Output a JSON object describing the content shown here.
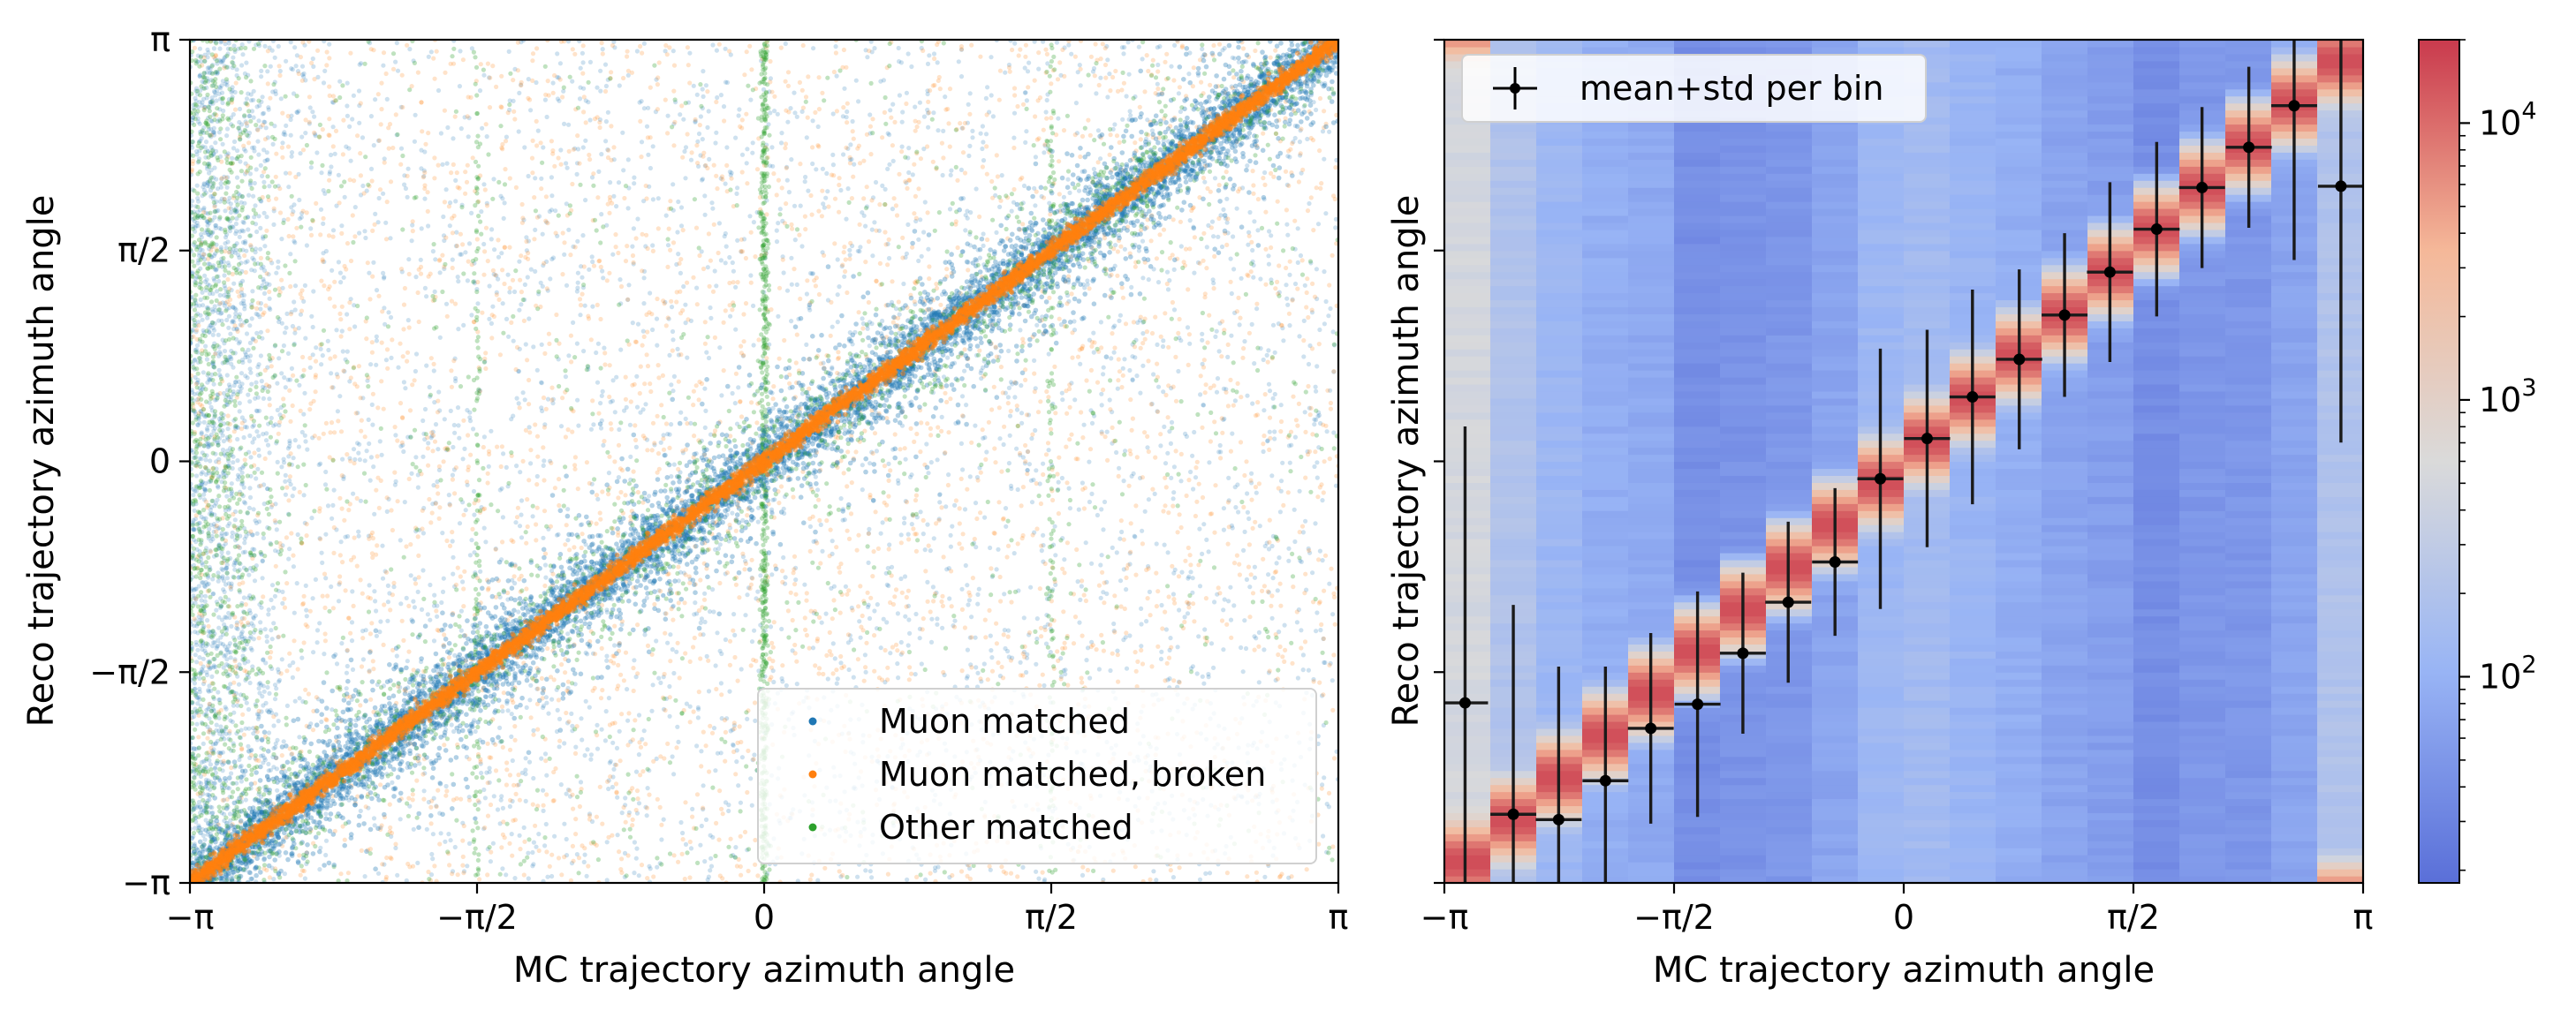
{
  "chart_data": [
    {
      "type": "scatter",
      "xlabel": "MC trajectory azimuth angle",
      "ylabel": "Reco trajectory azimuth angle",
      "xlim": [
        -3.14159,
        3.14159
      ],
      "ylim": [
        -3.14159,
        3.14159
      ],
      "xticks": [
        {
          "value": -3.14159,
          "label": "−π"
        },
        {
          "value": -1.5708,
          "label": "−π/2"
        },
        {
          "value": 0,
          "label": "0"
        },
        {
          "value": 1.5708,
          "label": "π/2"
        },
        {
          "value": 3.14159,
          "label": "π"
        }
      ],
      "yticks": [
        {
          "value": -3.14159,
          "label": "−π"
        },
        {
          "value": -1.5708,
          "label": "−π/2"
        },
        {
          "value": 0,
          "label": "0"
        },
        {
          "value": 1.5708,
          "label": "π/2"
        },
        {
          "value": 3.14159,
          "label": "π"
        }
      ],
      "grid": false,
      "legend_position": "lower-right",
      "series": [
        {
          "name": "Muon matched",
          "color": "#1f77b4",
          "distribution": "diagonal y = x with spread ~0.12 rad plus sparse uniform background; background denser near x = −π"
        },
        {
          "name": "Muon matched, broken",
          "color": "#ff7f0e",
          "distribution": "tight diagonal y = x plus sparse uniform background"
        },
        {
          "name": "Other matched",
          "color": "#2ca02c",
          "distribution": "sparse background concentrated at x = 0, x = −π and along the diagonal"
        }
      ]
    },
    {
      "type": "heatmap",
      "xlabel": "MC trajectory azimuth angle",
      "ylabel": "Reco trajectory azimuth angle",
      "xlim": [
        -3.14159,
        3.14159
      ],
      "ylim": [
        -3.14159,
        3.14159
      ],
      "xticks": [
        {
          "value": -3.14159,
          "label": "−π"
        },
        {
          "value": -1.5708,
          "label": "−π/2"
        },
        {
          "value": 0,
          "label": "0"
        },
        {
          "value": 1.5708,
          "label": "π/2"
        },
        {
          "value": 3.14159,
          "label": "π"
        }
      ],
      "colorbar": {
        "scale": "log",
        "range": [
          18,
          20000
        ],
        "ticks": [
          {
            "value": 100,
            "label": "10",
            "exp": "2"
          },
          {
            "value": 1000,
            "label": "10",
            "exp": "3"
          },
          {
            "value": 10000,
            "label": "10",
            "exp": "4"
          }
        ],
        "colors": [
          "#5a6fd8",
          "#98b4f5",
          "#dadada",
          "#f5b899",
          "#c93a4d"
        ]
      },
      "n_columns": 20,
      "column_background_counts": [
        500,
        200,
        120,
        90,
        80,
        40,
        45,
        50,
        70,
        120,
        140,
        110,
        90,
        70,
        60,
        40,
        50,
        50,
        70,
        200
      ],
      "peak_count": 15000,
      "legend_position": "upper-left",
      "errorbars": {
        "name": "mean+std per bin",
        "color": "#000000",
        "x": [
          -3.0,
          -2.67,
          -2.36,
          -2.04,
          -1.73,
          -1.41,
          -1.1,
          -0.79,
          -0.47,
          -0.16,
          0.16,
          0.47,
          0.79,
          1.1,
          1.41,
          1.73,
          2.04,
          2.36,
          2.67,
          2.99
        ],
        "y": [
          -1.8,
          -2.63,
          -2.67,
          -2.38,
          -1.99,
          -1.81,
          -1.43,
          -1.05,
          -0.75,
          -0.13,
          0.17,
          0.48,
          0.76,
          1.09,
          1.41,
          1.73,
          2.04,
          2.34,
          2.65,
          2.05
        ],
        "xerr": 0.157,
        "yerr": [
          2.06,
          1.56,
          1.14,
          0.85,
          0.71,
          0.84,
          0.6,
          0.6,
          0.55,
          0.97,
          0.81,
          0.8,
          0.67,
          0.61,
          0.67,
          0.65,
          0.6,
          0.6,
          1.15,
          1.91
        ]
      }
    }
  ]
}
